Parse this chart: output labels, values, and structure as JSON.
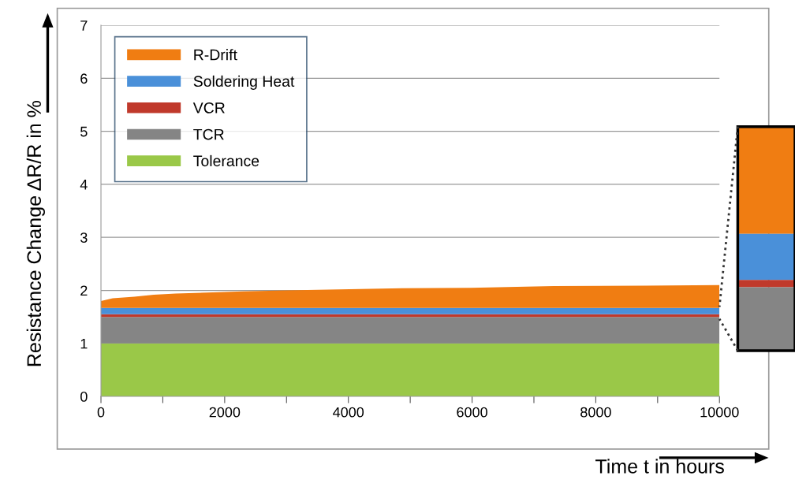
{
  "chart_data": {
    "type": "area",
    "stacked": true,
    "xlabel": "Time t in hours",
    "ylabel": "Resistance Change ΔR/R in %",
    "x": [
      0,
      190,
      540,
      855,
      1210,
      1710,
      2300,
      3000,
      3850,
      4870,
      5980,
      7320,
      8800,
      10000
    ],
    "series": [
      {
        "name": "Tolerance",
        "color": "#9ac848",
        "values": [
          1.0,
          1.0,
          1.0,
          1.0,
          1.0,
          1.0,
          1.0,
          1.0,
          1.0,
          1.0,
          1.0,
          1.0,
          1.0,
          1.0
        ]
      },
      {
        "name": "TCR",
        "color": "#858585",
        "values": [
          0.5,
          0.5,
          0.5,
          0.5,
          0.5,
          0.5,
          0.5,
          0.5,
          0.5,
          0.5,
          0.5,
          0.5,
          0.5,
          0.5
        ]
      },
      {
        "name": "VCR",
        "color": "#c0392b",
        "values": [
          0.05,
          0.05,
          0.05,
          0.05,
          0.05,
          0.05,
          0.05,
          0.05,
          0.05,
          0.05,
          0.05,
          0.05,
          0.05,
          0.05
        ]
      },
      {
        "name": "Soldering Heat",
        "color": "#4a90d9",
        "values": [
          0.12,
          0.12,
          0.12,
          0.12,
          0.12,
          0.12,
          0.12,
          0.12,
          0.12,
          0.12,
          0.12,
          0.12,
          0.12,
          0.12
        ]
      },
      {
        "name": "R-Drift",
        "color": "#f07d12",
        "values": [
          0.13,
          0.18,
          0.21,
          0.25,
          0.27,
          0.29,
          0.31,
          0.33,
          0.35,
          0.37,
          0.38,
          0.41,
          0.42,
          0.43
        ]
      }
    ],
    "xlim": [
      0,
      10000
    ],
    "ylim": [
      0,
      7
    ],
    "xticks": [
      0,
      {
        "value": 1000,
        "label": null
      },
      2000,
      {
        "value": 3000,
        "label": null
      },
      4000,
      {
        "value": 5000,
        "label": null
      },
      6000,
      {
        "value": 7000,
        "label": null
      },
      8000,
      {
        "value": 9000,
        "label": null
      },
      10000
    ],
    "yticks": [
      0,
      1,
      2,
      3,
      4,
      5,
      6,
      7
    ],
    "grid": "y",
    "legend": "top left"
  }
}
